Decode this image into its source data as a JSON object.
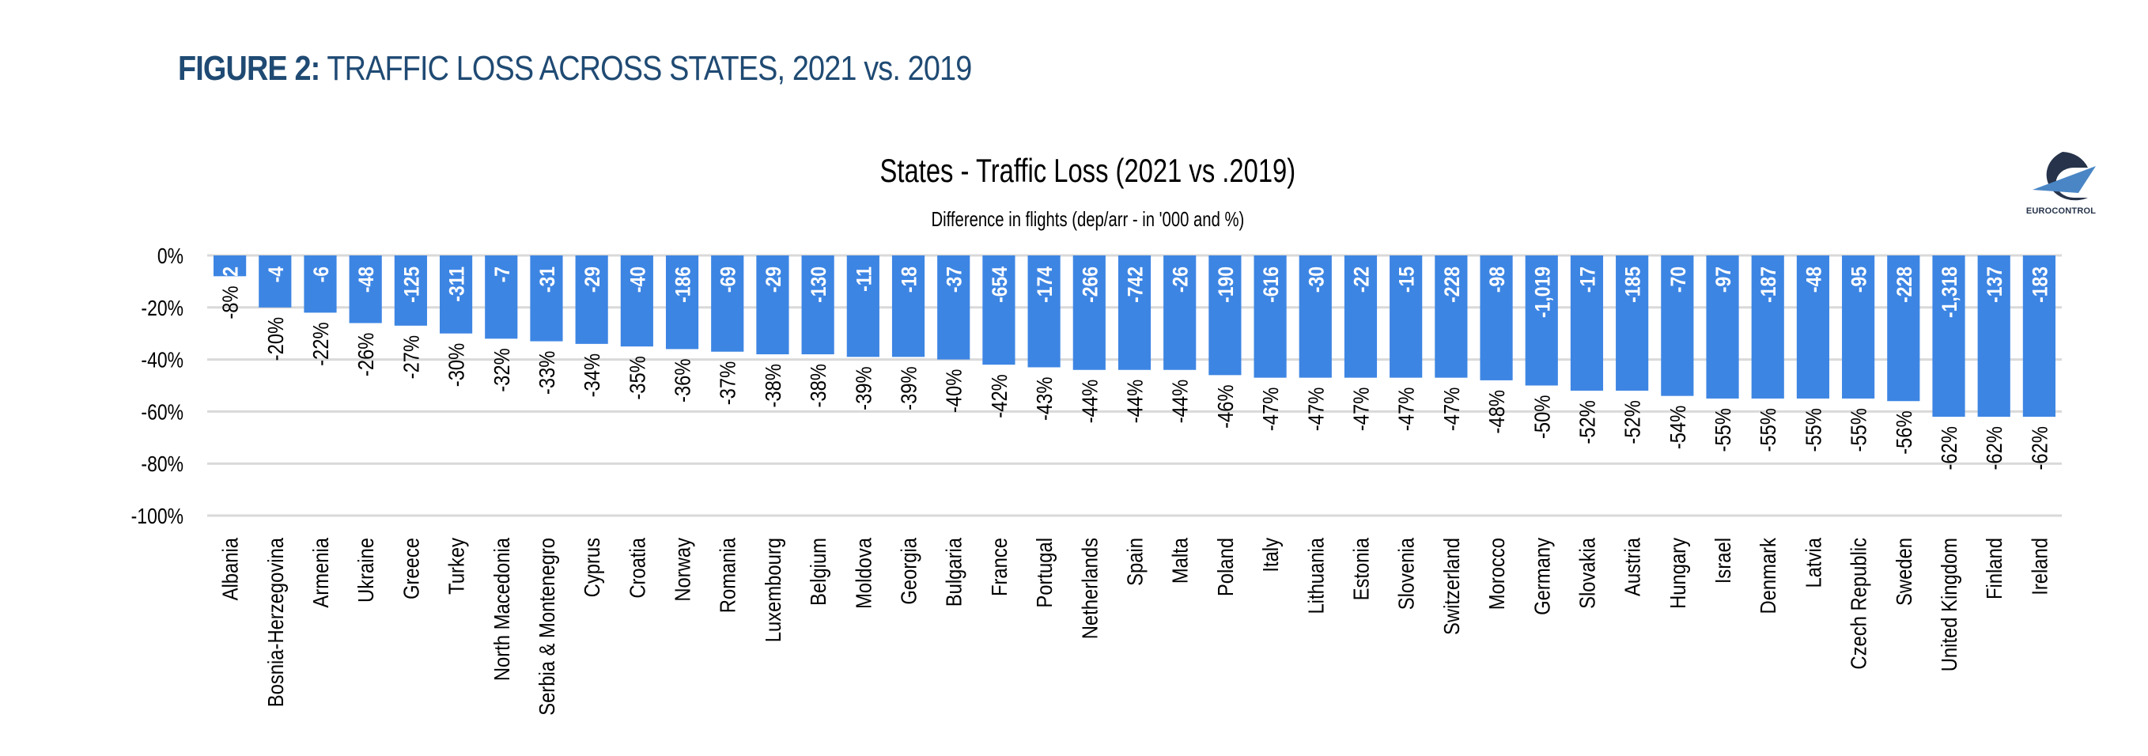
{
  "figure": {
    "label": "FIGURE 2:",
    "title": " TRAFFIC LOSS ACROSS STATES, 2021 vs. 2019"
  },
  "logo": {
    "icon": "eurocontrol-logo-icon",
    "text": "EUROCONTROL",
    "colors": {
      "dark": "#26334a",
      "light": "#4a86c5"
    }
  },
  "chart_data": {
    "type": "bar",
    "title": "States - Traffic Loss (2021 vs .2019)",
    "subtitle": "Difference in flights (dep/arr - in '000 and %)",
    "xlabel": "",
    "ylabel": "",
    "ylim": [
      -100,
      0
    ],
    "yticks": [
      0,
      -20,
      -40,
      -60,
      -80,
      -100
    ],
    "ytick_labels": [
      "0%",
      "-20%",
      "-40%",
      "-60%",
      "-80%",
      "-100%"
    ],
    "grid": true,
    "legend": "none",
    "bar_color": "#3d85e3",
    "categories": [
      "Albania",
      "Bosnia-Herzegovina",
      "Armenia",
      "Ukraine",
      "Greece",
      "Turkey",
      "North Macedonia",
      "Serbia & Montenegro",
      "Cyprus",
      "Croatia",
      "Norway",
      "Romania",
      "Luxembourg",
      "Belgium",
      "Moldova",
      "Georgia",
      "Bulgaria",
      "France",
      "Portugal",
      "Netherlands",
      "Spain",
      "Malta",
      "Poland",
      "Italy",
      "Lithuania",
      "Estonia",
      "Slovenia",
      "Switzerland",
      "Morocco",
      "Germany",
      "Slovakia",
      "Austria",
      "Hungary",
      "Israel",
      "Denmark",
      "Latvia",
      "Czech Republic",
      "Sweden",
      "United Kingdom",
      "Finland",
      "Ireland"
    ],
    "series": [
      {
        "name": "Traffic loss (%)",
        "values": [
          -8,
          -20,
          -22,
          -26,
          -27,
          -30,
          -32,
          -33,
          -34,
          -35,
          -36,
          -37,
          -38,
          -38,
          -39,
          -39,
          -40,
          -42,
          -43,
          -44,
          -44,
          -44,
          -46,
          -47,
          -47,
          -47,
          -47,
          -47,
          -48,
          -50,
          -52,
          -52,
          -54,
          -55,
          -55,
          -55,
          -55,
          -56,
          -62,
          -62,
          -62
        ],
        "labels": [
          "-8%",
          "-20%",
          "-22%",
          "-26%",
          "-27%",
          "-30%",
          "-32%",
          "-33%",
          "-34%",
          "-35%",
          "-36%",
          "-37%",
          "-38%",
          "-38%",
          "-39%",
          "-39%",
          "-40%",
          "-42%",
          "-43%",
          "-44%",
          "-44%",
          "-44%",
          "-46%",
          "-47%",
          "-47%",
          "-47%",
          "-47%",
          "-47%",
          "-48%",
          "-50%",
          "-52%",
          "-52%",
          "-54%",
          "-55%",
          "-55%",
          "-55%",
          "-55%",
          "-56%",
          "-62%",
          "-62%",
          "-62%"
        ]
      },
      {
        "name": "Difference in flights ('000)",
        "values": [
          -2,
          -4,
          -6,
          -48,
          -125,
          -311,
          -7,
          -31,
          -29,
          -40,
          -186,
          -69,
          -29,
          -130,
          -11,
          -18,
          -37,
          -654,
          -174,
          -266,
          -742,
          -26,
          -190,
          -616,
          -30,
          -22,
          -15,
          -228,
          -98,
          -1019,
          -17,
          -185,
          -70,
          -97,
          -187,
          -48,
          -95,
          -228,
          -1318,
          -137,
          -183
        ],
        "labels": [
          "-2",
          "-4",
          "-6",
          "-48",
          "-125",
          "-311",
          "-7",
          "-31",
          "-29",
          "-40",
          "-186",
          "-69",
          "-29",
          "-130",
          "-11",
          "-18",
          "-37",
          "-654",
          "-174",
          "-266",
          "-742",
          "-26",
          "-190",
          "-616",
          "-30",
          "-22",
          "-15",
          "-228",
          "-98",
          "-1,019",
          "-17",
          "-185",
          "-70",
          "-97",
          "-187",
          "-48",
          "-95",
          "-228",
          "-1,318",
          "-137",
          "-183"
        ]
      }
    ]
  }
}
